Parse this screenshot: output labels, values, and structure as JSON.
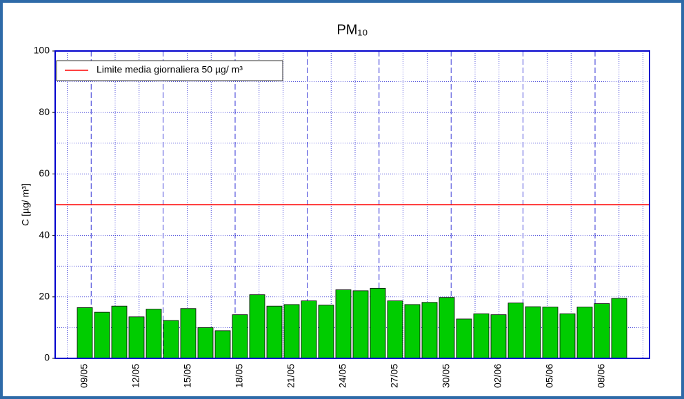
{
  "chart_data": {
    "type": "bar",
    "title": "PM₁₀",
    "y_label": "C [µg/ m³]",
    "categories": [
      "09/05",
      null,
      null,
      "12/05",
      null,
      null,
      "15/05",
      null,
      null,
      "18/05",
      null,
      null,
      "21/05",
      null,
      null,
      "24/05",
      null,
      null,
      "27/05",
      null,
      null,
      "30/05",
      null,
      null,
      "02/06",
      null,
      null,
      "05/06",
      null,
      null,
      "08/06",
      null
    ],
    "values": [
      16.5,
      15,
      17,
      13.5,
      16,
      12.3,
      16.2,
      10,
      9,
      14.2,
      20.7,
      17,
      17.5,
      18.7,
      17.3,
      22.3,
      22,
      22.8,
      18.7,
      17.5,
      18.2,
      19.8,
      12.8,
      14.5,
      14.2,
      18,
      16.8,
      16.7,
      14.5,
      16.7,
      17.8,
      19.5
    ],
    "color": "#00cc00",
    "reference_line": {
      "value": 50,
      "label": "Limite media giornaliera 50 µg/ m³",
      "color": "#ff0000"
    },
    "ylim": [
      0,
      100
    ],
    "yticks": [
      0,
      20,
      40,
      60,
      80,
      100
    ],
    "grid": true
  }
}
